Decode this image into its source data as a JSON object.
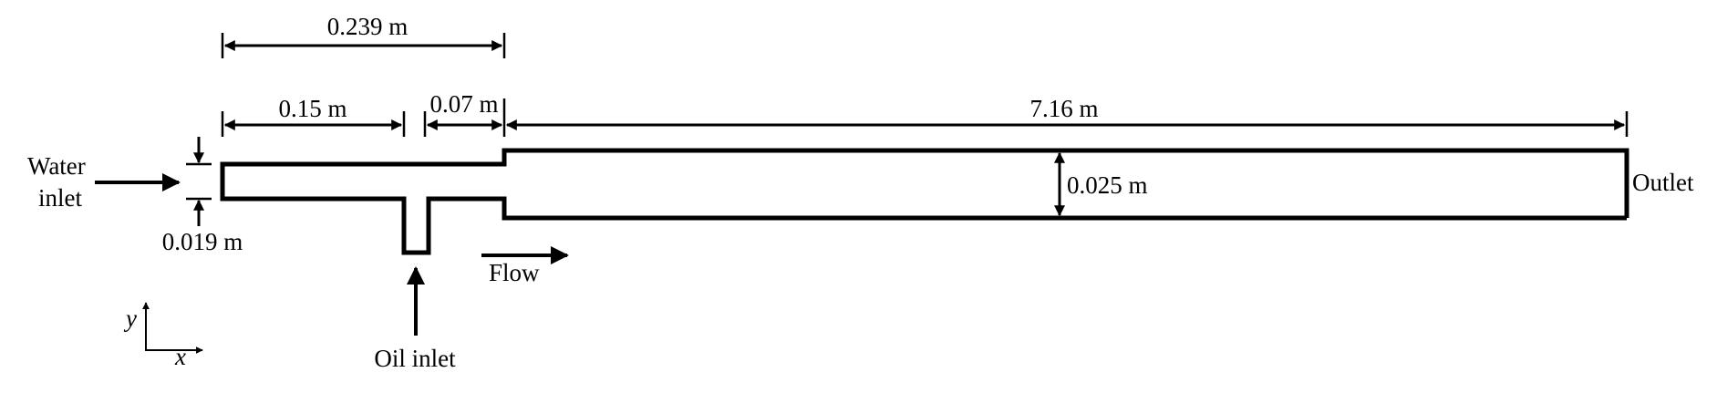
{
  "labels": {
    "dim_total_inlet": "0.239 m",
    "dim_water_section": "0.15 m",
    "dim_oil_section": "0.07 m",
    "dim_main_pipe": "7.16 m",
    "dim_main_diameter": "0.025 m",
    "dim_inlet_diameter": "0.019 m",
    "water_inlet_line1": "Water",
    "water_inlet_line2": "inlet",
    "oil_inlet": "Oil inlet",
    "outlet": "Outlet",
    "flow": "Flow",
    "axis_x": "x",
    "axis_y": "y"
  },
  "colors": {
    "line": "#000000",
    "background": "#ffffff"
  }
}
